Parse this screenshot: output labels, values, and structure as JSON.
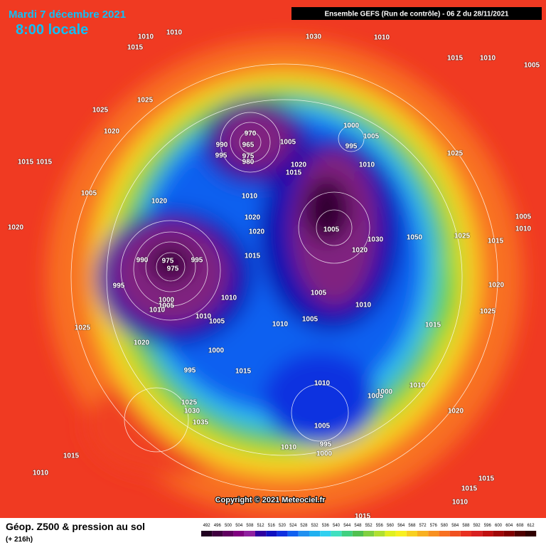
{
  "header": {
    "date": "Mardi 7 décembre 2021",
    "time": "8:00 locale",
    "run": "Ensemble GEFS  (Run de contrôle)  -  06 Z du 28/11/2021"
  },
  "footer": {
    "title": "Géop. Z500 & pression au sol",
    "lead": "(+ 216h)",
    "copyright": "Copyright © 2021 Meteociel.fr"
  },
  "legend": {
    "values": [
      492,
      496,
      500,
      504,
      508,
      512,
      516,
      520,
      524,
      528,
      532,
      536,
      540,
      544,
      548,
      552,
      556,
      560,
      564,
      568,
      572,
      576,
      580,
      584,
      588,
      592,
      596,
      600,
      604,
      608,
      612
    ],
    "colors": [
      "#200020",
      "#400040",
      "#600060",
      "#800080",
      "#9020a0",
      "#3000a0",
      "#1010c0",
      "#1030e0",
      "#1060f0",
      "#2090f0",
      "#20b0f0",
      "#30d0f0",
      "#40e0c0",
      "#40d080",
      "#50c050",
      "#80d040",
      "#b0e030",
      "#e0f020",
      "#f8f020",
      "#f8d020",
      "#f8b020",
      "#f89020",
      "#f87020",
      "#f05020",
      "#e83020",
      "#d82020",
      "#c01010",
      "#a00808",
      "#800000",
      "#500000",
      "#300000"
    ]
  },
  "isobars": [
    "1010",
    "1010",
    "1015",
    "1030",
    "1010",
    "1015",
    "1010",
    "1005",
    "1025",
    "1025",
    "1020",
    "1015",
    "1015",
    "970",
    "965",
    "990",
    "995",
    "975",
    "980",
    "1005",
    "1020",
    "1015",
    "1000",
    "1005",
    "995",
    "1010",
    "1025",
    "1005",
    "1010",
    "1020",
    "1020",
    "1020",
    "1005",
    "1030",
    "1050",
    "1025",
    "1015",
    "1005",
    "1010",
    "1020",
    "990",
    "975",
    "995",
    "975",
    "1015",
    "1020",
    "995",
    "1000",
    "1005",
    "1010",
    "1010",
    "1005",
    "1010",
    "1020",
    "1025",
    "1010",
    "1005",
    "1010",
    "1005",
    "1015",
    "1025",
    "1020",
    "1000",
    "995",
    "1015",
    "1010",
    "1005",
    "1000",
    "1010",
    "1020",
    "1025",
    "1030",
    "1035",
    "1005",
    "995",
    "1000",
    "1010",
    "1015",
    "1010",
    "1015",
    "1015",
    "1010",
    "1015"
  ]
}
